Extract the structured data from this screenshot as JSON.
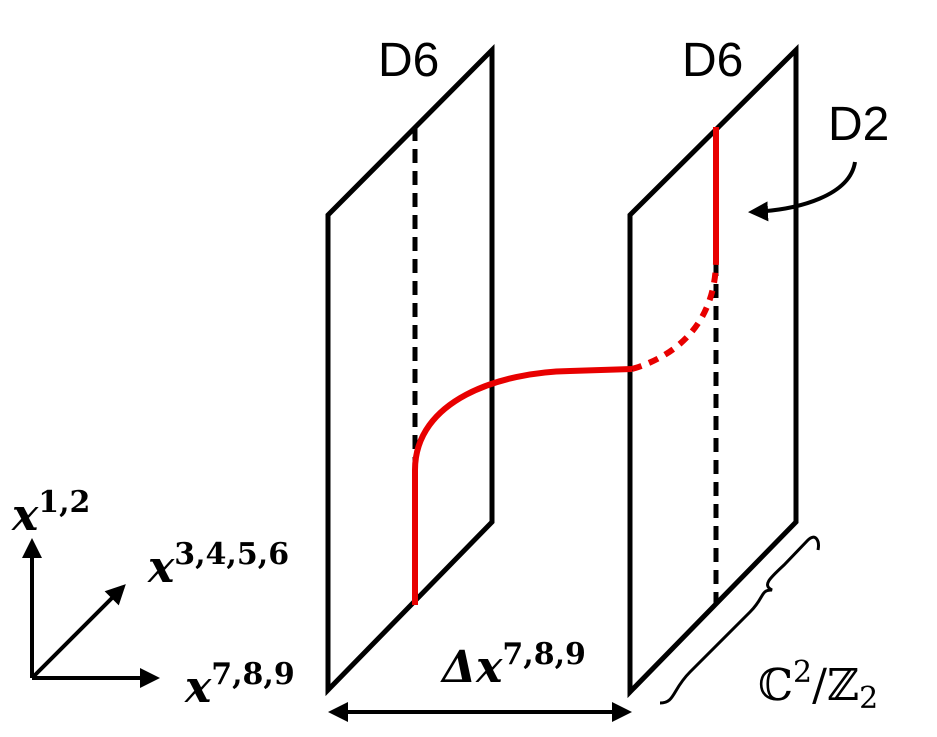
{
  "labels": {
    "brane_left": "D6",
    "brane_right": "D6",
    "string": "D2"
  },
  "axes": [
    {
      "base": "x",
      "sup": "1,2"
    },
    {
      "base": "x",
      "sup": "3,4,5,6"
    },
    {
      "base": "x",
      "sup": "7,8,9"
    }
  ],
  "separation": {
    "base": "Δx",
    "sup": "7,8,9"
  },
  "orbifold": {
    "base": "ℂ",
    "sup": "2",
    "mid": "/ℤ",
    "sub": "2"
  }
}
